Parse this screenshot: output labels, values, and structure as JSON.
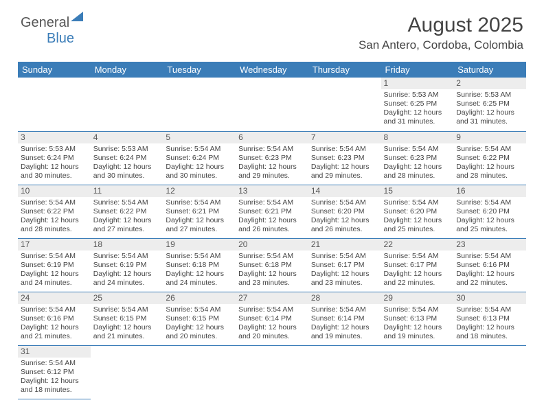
{
  "logo": {
    "textA": "General",
    "textB": "Blue"
  },
  "title": "August 2025",
  "location": "San Antero, Cordoba, Colombia",
  "dayHeaders": [
    "Sunday",
    "Monday",
    "Tuesday",
    "Wednesday",
    "Thursday",
    "Friday",
    "Saturday"
  ],
  "colors": {
    "header_bg": "#3b7db8",
    "header_text": "#ffffff",
    "cell_border": "#3b7db8",
    "daynum_bg": "#ededed"
  },
  "weeks": [
    [
      {
        "empty": true
      },
      {
        "empty": true
      },
      {
        "empty": true
      },
      {
        "empty": true
      },
      {
        "empty": true
      },
      {
        "day": "1",
        "sunrise": "Sunrise: 5:53 AM",
        "sunset": "Sunset: 6:25 PM",
        "daylight1": "Daylight: 12 hours",
        "daylight2": "and 31 minutes."
      },
      {
        "day": "2",
        "sunrise": "Sunrise: 5:53 AM",
        "sunset": "Sunset: 6:25 PM",
        "daylight1": "Daylight: 12 hours",
        "daylight2": "and 31 minutes."
      }
    ],
    [
      {
        "day": "3",
        "sunrise": "Sunrise: 5:53 AM",
        "sunset": "Sunset: 6:24 PM",
        "daylight1": "Daylight: 12 hours",
        "daylight2": "and 30 minutes."
      },
      {
        "day": "4",
        "sunrise": "Sunrise: 5:53 AM",
        "sunset": "Sunset: 6:24 PM",
        "daylight1": "Daylight: 12 hours",
        "daylight2": "and 30 minutes."
      },
      {
        "day": "5",
        "sunrise": "Sunrise: 5:54 AM",
        "sunset": "Sunset: 6:24 PM",
        "daylight1": "Daylight: 12 hours",
        "daylight2": "and 30 minutes."
      },
      {
        "day": "6",
        "sunrise": "Sunrise: 5:54 AM",
        "sunset": "Sunset: 6:23 PM",
        "daylight1": "Daylight: 12 hours",
        "daylight2": "and 29 minutes."
      },
      {
        "day": "7",
        "sunrise": "Sunrise: 5:54 AM",
        "sunset": "Sunset: 6:23 PM",
        "daylight1": "Daylight: 12 hours",
        "daylight2": "and 29 minutes."
      },
      {
        "day": "8",
        "sunrise": "Sunrise: 5:54 AM",
        "sunset": "Sunset: 6:23 PM",
        "daylight1": "Daylight: 12 hours",
        "daylight2": "and 28 minutes."
      },
      {
        "day": "9",
        "sunrise": "Sunrise: 5:54 AM",
        "sunset": "Sunset: 6:22 PM",
        "daylight1": "Daylight: 12 hours",
        "daylight2": "and 28 minutes."
      }
    ],
    [
      {
        "day": "10",
        "sunrise": "Sunrise: 5:54 AM",
        "sunset": "Sunset: 6:22 PM",
        "daylight1": "Daylight: 12 hours",
        "daylight2": "and 28 minutes."
      },
      {
        "day": "11",
        "sunrise": "Sunrise: 5:54 AM",
        "sunset": "Sunset: 6:22 PM",
        "daylight1": "Daylight: 12 hours",
        "daylight2": "and 27 minutes."
      },
      {
        "day": "12",
        "sunrise": "Sunrise: 5:54 AM",
        "sunset": "Sunset: 6:21 PM",
        "daylight1": "Daylight: 12 hours",
        "daylight2": "and 27 minutes."
      },
      {
        "day": "13",
        "sunrise": "Sunrise: 5:54 AM",
        "sunset": "Sunset: 6:21 PM",
        "daylight1": "Daylight: 12 hours",
        "daylight2": "and 26 minutes."
      },
      {
        "day": "14",
        "sunrise": "Sunrise: 5:54 AM",
        "sunset": "Sunset: 6:20 PM",
        "daylight1": "Daylight: 12 hours",
        "daylight2": "and 26 minutes."
      },
      {
        "day": "15",
        "sunrise": "Sunrise: 5:54 AM",
        "sunset": "Sunset: 6:20 PM",
        "daylight1": "Daylight: 12 hours",
        "daylight2": "and 25 minutes."
      },
      {
        "day": "16",
        "sunrise": "Sunrise: 5:54 AM",
        "sunset": "Sunset: 6:20 PM",
        "daylight1": "Daylight: 12 hours",
        "daylight2": "and 25 minutes."
      }
    ],
    [
      {
        "day": "17",
        "sunrise": "Sunrise: 5:54 AM",
        "sunset": "Sunset: 6:19 PM",
        "daylight1": "Daylight: 12 hours",
        "daylight2": "and 24 minutes."
      },
      {
        "day": "18",
        "sunrise": "Sunrise: 5:54 AM",
        "sunset": "Sunset: 6:19 PM",
        "daylight1": "Daylight: 12 hours",
        "daylight2": "and 24 minutes."
      },
      {
        "day": "19",
        "sunrise": "Sunrise: 5:54 AM",
        "sunset": "Sunset: 6:18 PM",
        "daylight1": "Daylight: 12 hours",
        "daylight2": "and 24 minutes."
      },
      {
        "day": "20",
        "sunrise": "Sunrise: 5:54 AM",
        "sunset": "Sunset: 6:18 PM",
        "daylight1": "Daylight: 12 hours",
        "daylight2": "and 23 minutes."
      },
      {
        "day": "21",
        "sunrise": "Sunrise: 5:54 AM",
        "sunset": "Sunset: 6:17 PM",
        "daylight1": "Daylight: 12 hours",
        "daylight2": "and 23 minutes."
      },
      {
        "day": "22",
        "sunrise": "Sunrise: 5:54 AM",
        "sunset": "Sunset: 6:17 PM",
        "daylight1": "Daylight: 12 hours",
        "daylight2": "and 22 minutes."
      },
      {
        "day": "23",
        "sunrise": "Sunrise: 5:54 AM",
        "sunset": "Sunset: 6:16 PM",
        "daylight1": "Daylight: 12 hours",
        "daylight2": "and 22 minutes."
      }
    ],
    [
      {
        "day": "24",
        "sunrise": "Sunrise: 5:54 AM",
        "sunset": "Sunset: 6:16 PM",
        "daylight1": "Daylight: 12 hours",
        "daylight2": "and 21 minutes."
      },
      {
        "day": "25",
        "sunrise": "Sunrise: 5:54 AM",
        "sunset": "Sunset: 6:15 PM",
        "daylight1": "Daylight: 12 hours",
        "daylight2": "and 21 minutes."
      },
      {
        "day": "26",
        "sunrise": "Sunrise: 5:54 AM",
        "sunset": "Sunset: 6:15 PM",
        "daylight1": "Daylight: 12 hours",
        "daylight2": "and 20 minutes."
      },
      {
        "day": "27",
        "sunrise": "Sunrise: 5:54 AM",
        "sunset": "Sunset: 6:14 PM",
        "daylight1": "Daylight: 12 hours",
        "daylight2": "and 20 minutes."
      },
      {
        "day": "28",
        "sunrise": "Sunrise: 5:54 AM",
        "sunset": "Sunset: 6:14 PM",
        "daylight1": "Daylight: 12 hours",
        "daylight2": "and 19 minutes."
      },
      {
        "day": "29",
        "sunrise": "Sunrise: 5:54 AM",
        "sunset": "Sunset: 6:13 PM",
        "daylight1": "Daylight: 12 hours",
        "daylight2": "and 19 minutes."
      },
      {
        "day": "30",
        "sunrise": "Sunrise: 5:54 AM",
        "sunset": "Sunset: 6:13 PM",
        "daylight1": "Daylight: 12 hours",
        "daylight2": "and 18 minutes."
      }
    ],
    [
      {
        "day": "31",
        "sunrise": "Sunrise: 5:54 AM",
        "sunset": "Sunset: 6:12 PM",
        "daylight1": "Daylight: 12 hours",
        "daylight2": "and 18 minutes."
      },
      {
        "empty": true
      },
      {
        "empty": true
      },
      {
        "empty": true
      },
      {
        "empty": true
      },
      {
        "empty": true
      },
      {
        "empty": true
      }
    ]
  ]
}
